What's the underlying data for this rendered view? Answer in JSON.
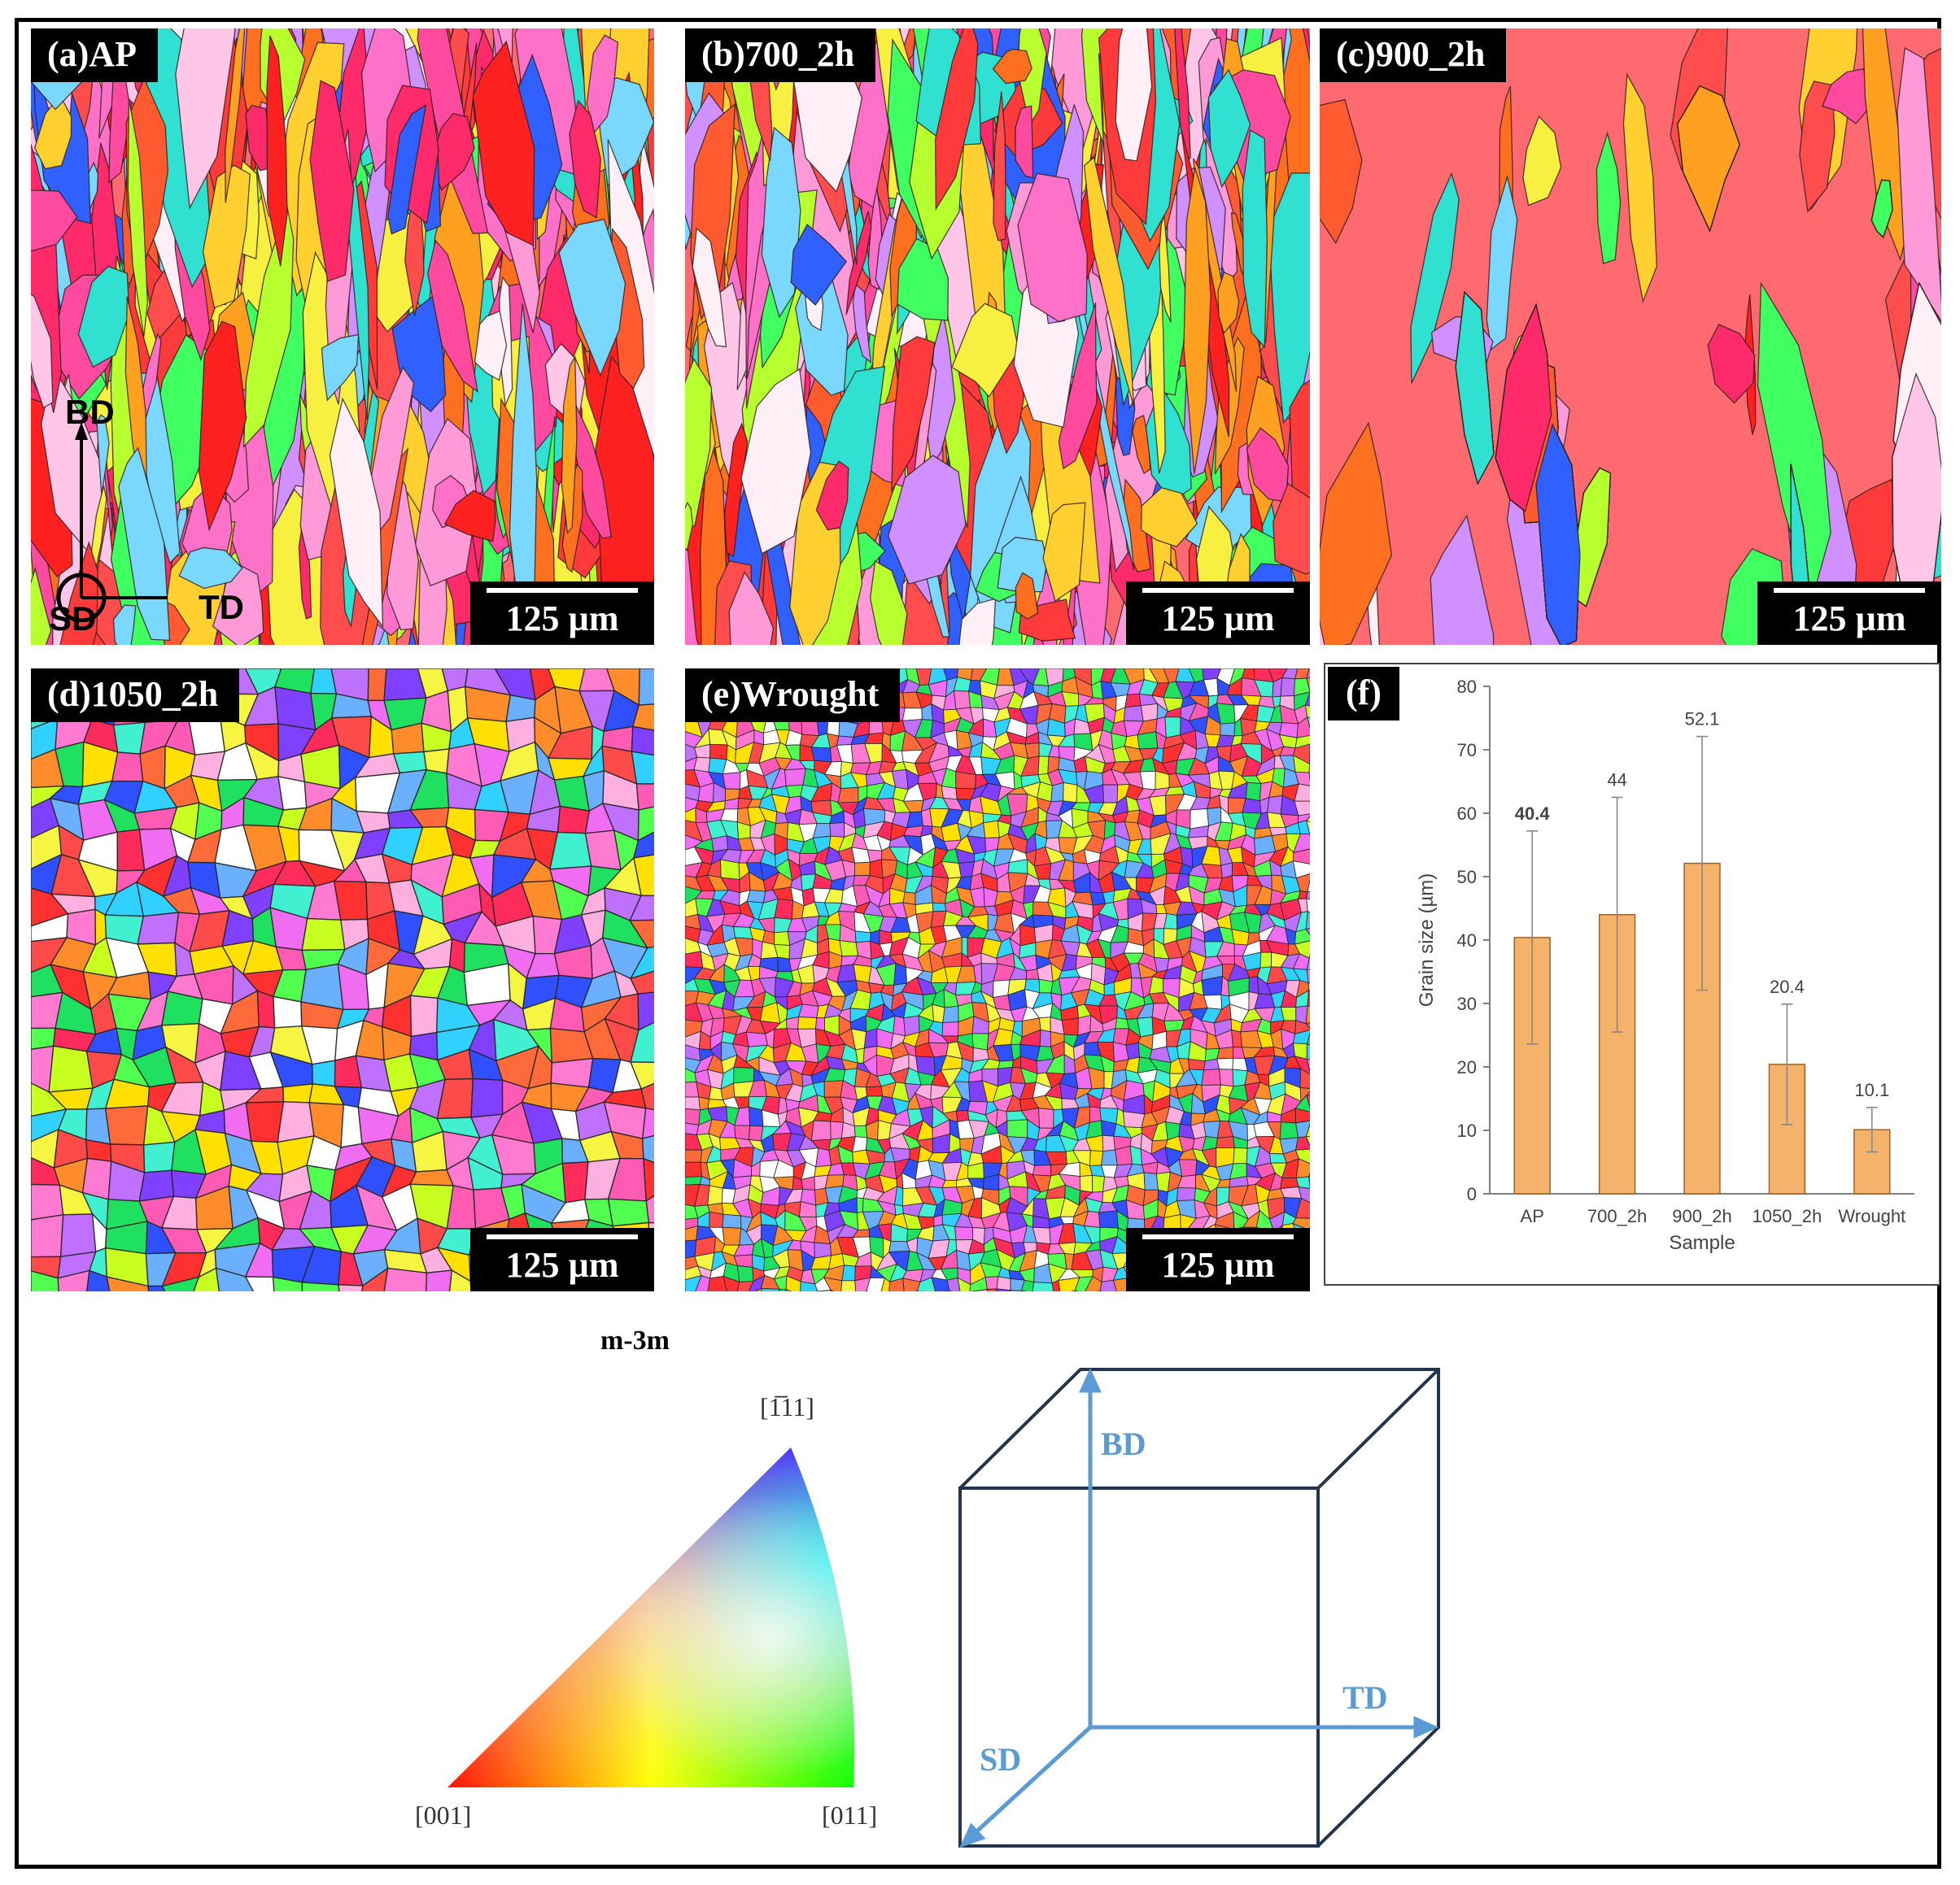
{
  "panels": [
    {
      "id": "a",
      "label": "(a)AP",
      "scale": "125 µm"
    },
    {
      "id": "b",
      "label": "(b)700_2h",
      "scale": "125 µm"
    },
    {
      "id": "c",
      "label": "(c)900_2h",
      "scale": "125 µm"
    },
    {
      "id": "d",
      "label": "(d)1050_2h",
      "scale": "125 µm"
    },
    {
      "id": "e",
      "label": "(e)Wrought",
      "scale": "125 µm"
    }
  ],
  "axes_a": {
    "bd": "BD",
    "td": "TD",
    "sd": "SD"
  },
  "panel_f": {
    "label": "(f)"
  },
  "chart_data": {
    "type": "bar",
    "categories": [
      "AP",
      "700_2h",
      "900_2h",
      "1050_2h",
      "Wrought"
    ],
    "values": [
      40.4,
      44,
      52.1,
      20.4,
      10.1
    ],
    "value_labels": [
      "40.4",
      "44",
      "52.1",
      "20.4",
      "10.1"
    ],
    "errors": [
      16.8,
      18.5,
      20.0,
      9.5,
      3.5
    ],
    "xlabel": "Sample",
    "ylabel": "Grain size (µm)",
    "ylim": [
      0,
      80
    ],
    "yticks": [
      0,
      10,
      20,
      30,
      40,
      50,
      60,
      70,
      80
    ],
    "bar_color": "#f4b26b",
    "bar_edge": "#a0622a"
  },
  "ipf": {
    "title": "m-3m",
    "c001": "[001]",
    "c011": "[011]",
    "c111": "[1̅11]"
  },
  "cube": {
    "bd": "BD",
    "td": "TD",
    "sd": "SD"
  }
}
